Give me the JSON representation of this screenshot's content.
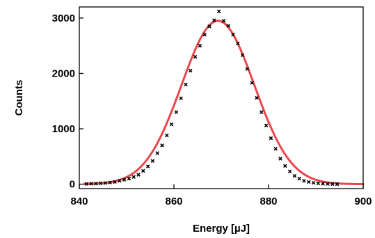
{
  "chart_data": {
    "type": "scatter",
    "xlabel": "Energy [µJ]",
    "ylabel": "Counts",
    "xlim": [
      840,
      900
    ],
    "ylim": [
      -80,
      3200
    ],
    "x_ticks": [
      840,
      860,
      880,
      900
    ],
    "y_ticks": [
      0,
      1000,
      2000,
      3000
    ],
    "grid": false,
    "series": [
      {
        "style": "markers",
        "color": "#000000",
        "points": [
          [
            841.5,
            5
          ],
          [
            842.5,
            8
          ],
          [
            843.5,
            10
          ],
          [
            844.5,
            15
          ],
          [
            845.5,
            20
          ],
          [
            846.5,
            30
          ],
          [
            847.5,
            40
          ],
          [
            848.5,
            60
          ],
          [
            849.5,
            80
          ],
          [
            850.5,
            100
          ],
          [
            851.5,
            130
          ],
          [
            852.5,
            170
          ],
          [
            853.5,
            240
          ],
          [
            854.5,
            320
          ],
          [
            855.5,
            420
          ],
          [
            856.5,
            560
          ],
          [
            857.5,
            700
          ],
          [
            858.5,
            880
          ],
          [
            859.5,
            1080
          ],
          [
            860.5,
            1300
          ],
          [
            861.5,
            1550
          ],
          [
            862.5,
            1800
          ],
          [
            863.5,
            2050
          ],
          [
            864.5,
            2300
          ],
          [
            865.5,
            2500
          ],
          [
            866.5,
            2700
          ],
          [
            867.5,
            2850
          ],
          [
            868.5,
            2960
          ],
          [
            869.5,
            3120
          ],
          [
            870.5,
            2950
          ],
          [
            871.5,
            2860
          ],
          [
            872.5,
            2700
          ],
          [
            873.5,
            2540
          ],
          [
            874.5,
            2330
          ],
          [
            875.5,
            2080
          ],
          [
            876.5,
            1830
          ],
          [
            877.5,
            1560
          ],
          [
            878.5,
            1300
          ],
          [
            879.5,
            1060
          ],
          [
            880.5,
            830
          ],
          [
            881.5,
            640
          ],
          [
            882.5,
            460
          ],
          [
            883.5,
            330
          ],
          [
            884.5,
            230
          ],
          [
            885.5,
            150
          ],
          [
            886.5,
            100
          ],
          [
            887.5,
            60
          ],
          [
            888.5,
            40
          ],
          [
            889.5,
            25
          ],
          [
            890.5,
            15
          ],
          [
            891.5,
            8
          ],
          [
            892.5,
            5
          ],
          [
            893.5,
            2
          ],
          [
            894.5,
            0
          ]
        ]
      },
      {
        "style": "line",
        "color": "#e8474c",
        "fit": {
          "model": "gaussian",
          "amplitude": 2950,
          "center": 869.3,
          "sigma": 7.7,
          "x_range": [
            841,
            900
          ]
        }
      }
    ]
  }
}
